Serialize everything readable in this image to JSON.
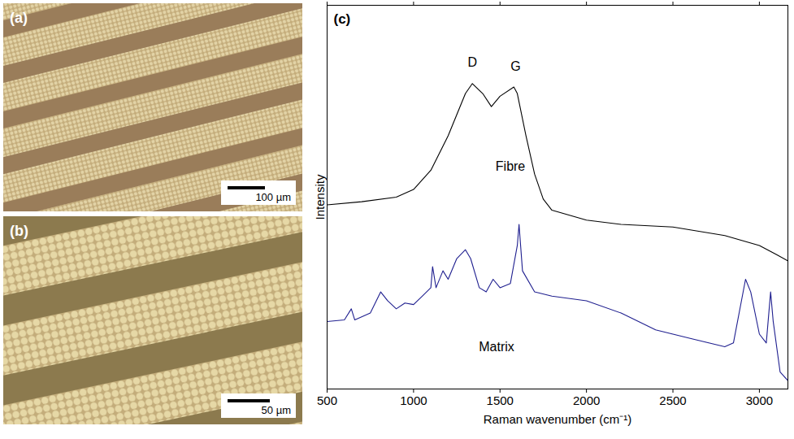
{
  "panels": [
    {
      "label": "(a)",
      "scale_bar": "100 µm"
    },
    {
      "label": "(b)",
      "scale_bar": "50 µm"
    }
  ],
  "chart_data": {
    "type": "line",
    "panel_label": "(c)",
    "x_label": "Raman wavenumber (cm⁻¹)",
    "y_label": "Intensity",
    "xlim": [
      500,
      3165
    ],
    "xticks": [
      500,
      1000,
      1500,
      2000,
      2500,
      3000
    ],
    "ylim": [
      0,
      100
    ],
    "tick_labels": "x",
    "grid": false,
    "series": [
      {
        "name": "Fibre",
        "color": "#000000",
        "x": [
          500,
          700,
          900,
          1000,
          1100,
          1200,
          1300,
          1340,
          1400,
          1450,
          1500,
          1580,
          1600,
          1650,
          1700,
          1750,
          1800,
          2000,
          2200,
          2500,
          2800,
          3000,
          3100,
          3165
        ],
        "values": [
          48,
          48.8,
          50,
          52,
          57,
          66,
          77,
          79.6,
          77,
          73.6,
          76.3,
          78.7,
          77,
          66,
          56,
          49.5,
          46.6,
          44,
          42.9,
          42.2,
          40,
          37.4,
          35,
          33.4
        ]
      },
      {
        "name": "Matrix",
        "color": "#1f1f8f",
        "x": [
          500,
          600,
          640,
          660,
          750,
          810,
          850,
          900,
          950,
          1000,
          1050,
          1100,
          1110,
          1130,
          1170,
          1200,
          1250,
          1300,
          1330,
          1380,
          1420,
          1460,
          1500,
          1560,
          1600,
          1610,
          1630,
          1700,
          1800,
          2000,
          2200,
          2400,
          2600,
          2800,
          2850,
          2920,
          2950,
          3000,
          3040,
          3065,
          3080,
          3120,
          3165
        ],
        "values": [
          17.6,
          18,
          20.9,
          18,
          19.8,
          25.3,
          23,
          20.9,
          22.4,
          22,
          24.2,
          26.4,
          31.9,
          26.4,
          30.8,
          28.6,
          34,
          36.3,
          34,
          26.4,
          25.3,
          28.6,
          26.4,
          27.5,
          37.4,
          42.9,
          30.8,
          25.3,
          24.2,
          23,
          19.8,
          15.4,
          13.2,
          11,
          12,
          28.6,
          25.3,
          14.3,
          12,
          25.3,
          17.6,
          4.4,
          2.2
        ]
      }
    ],
    "annotations": [
      {
        "text": "D",
        "x": 1340,
        "y": 85
      },
      {
        "text": "G",
        "x": 1590,
        "y": 84
      }
    ]
  }
}
